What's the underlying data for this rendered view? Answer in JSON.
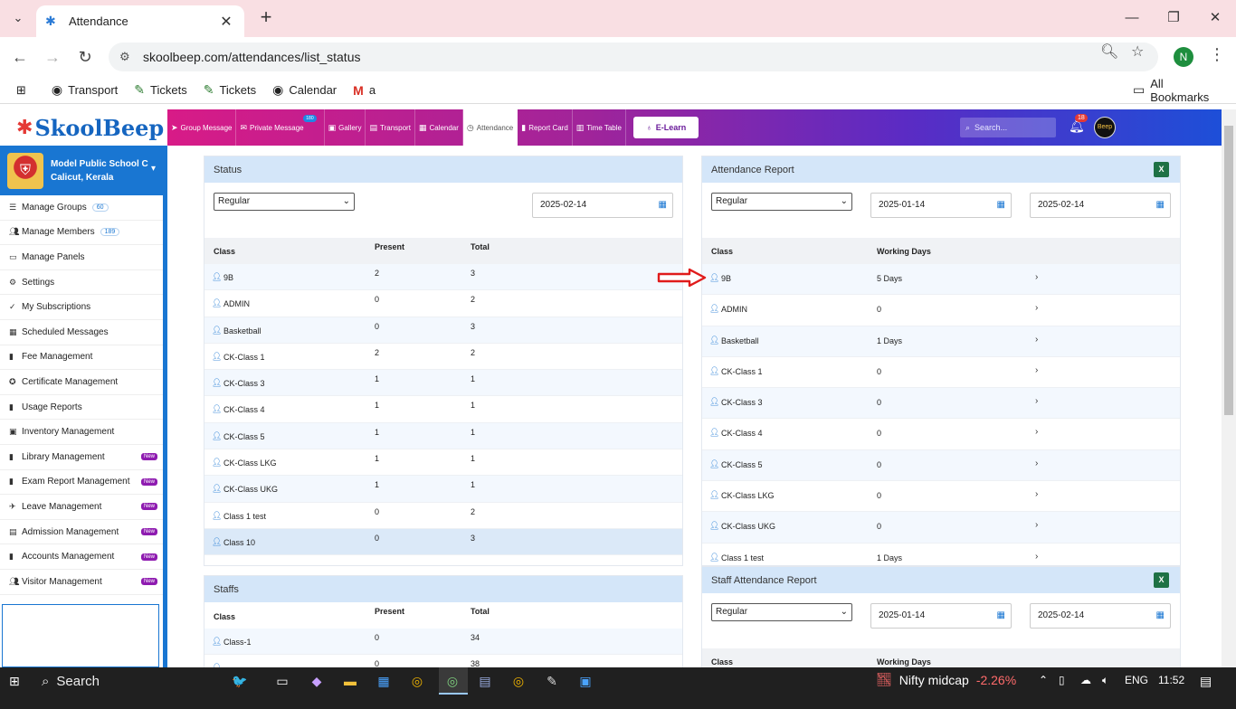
{
  "browser": {
    "tab_title": "Attendance",
    "url": "skoolbeep.com/attendances/list_status",
    "profile_initial": "N",
    "bookmarks": [
      {
        "label": "Transport",
        "icon": "globe-icon"
      },
      {
        "label": "Tickets",
        "icon": "ticket-icon"
      },
      {
        "label": "Tickets",
        "icon": "ticket-icon"
      },
      {
        "label": "Calendar",
        "icon": "globe-icon"
      },
      {
        "label": "a",
        "icon": "gmail-icon"
      }
    ],
    "all_bookmarks": "All Bookmarks"
  },
  "brand": {
    "name": "SkoolBeep"
  },
  "topnav": {
    "items": [
      {
        "label": "Group Message",
        "icon": "send-icon"
      },
      {
        "label": "Private Message",
        "icon": "mail-icon",
        "badge": "180"
      },
      {
        "label": "Gallery",
        "icon": "image-icon"
      },
      {
        "label": "Transport",
        "icon": "bus-icon"
      },
      {
        "label": "Calendar",
        "icon": "calendar-icon"
      },
      {
        "label": "Attendance",
        "icon": "clock-icon",
        "active": true
      },
      {
        "label": "Report Card",
        "icon": "book-icon"
      },
      {
        "label": "Time Table",
        "icon": "timetable-icon"
      }
    ],
    "elearn": "E-Learn",
    "search_placeholder": "Search...",
    "notif_count": "18",
    "avatar_text": "Beep"
  },
  "school": {
    "name": "Model Public School C",
    "location": "Calicut, Kerala"
  },
  "sidebar": {
    "items": [
      {
        "label": "Manage Groups",
        "count": "60",
        "icon": "list-icon"
      },
      {
        "label": "Manage Members",
        "count": "189",
        "icon": "users-icon"
      },
      {
        "label": "Manage Panels",
        "icon": "monitor-icon"
      },
      {
        "label": "Settings",
        "icon": "gear-icon"
      },
      {
        "label": "My Subscriptions",
        "icon": "check-icon"
      },
      {
        "label": "Scheduled Messages",
        "icon": "calendar-icon"
      },
      {
        "label": "Fee Management",
        "icon": "file-icon"
      },
      {
        "label": "Certificate Management",
        "icon": "award-icon"
      },
      {
        "label": "Usage Reports",
        "icon": "bar-chart-icon"
      },
      {
        "label": "Inventory Management",
        "icon": "box-icon"
      },
      {
        "label": "Library Management",
        "icon": "file-icon",
        "new": "New"
      },
      {
        "label": "Exam Report Management",
        "icon": "file-icon",
        "new": "New"
      },
      {
        "label": "Leave Management",
        "icon": "walk-icon",
        "new": "New"
      },
      {
        "label": "Admission Management",
        "icon": "id-card-icon",
        "new": "New"
      },
      {
        "label": "Accounts Management",
        "icon": "file-icon",
        "new": "New"
      },
      {
        "label": "Visitor Management",
        "icon": "users-icon",
        "new": "New"
      }
    ]
  },
  "status_panel": {
    "title": "Status",
    "select": "Regular",
    "date": "2025-02-14",
    "headers": {
      "class": "Class",
      "present": "Present",
      "total": "Total"
    },
    "rows": [
      {
        "class": "9B",
        "present": "2",
        "total": "3"
      },
      {
        "class": "ADMIN",
        "present": "0",
        "total": "2"
      },
      {
        "class": "Basketball",
        "present": "0",
        "total": "3"
      },
      {
        "class": "CK-Class 1",
        "present": "2",
        "total": "2"
      },
      {
        "class": "CK-Class 3",
        "present": "1",
        "total": "1"
      },
      {
        "class": "CK-Class 4",
        "present": "1",
        "total": "1"
      },
      {
        "class": "CK-Class 5",
        "present": "1",
        "total": "1"
      },
      {
        "class": "CK-Class LKG",
        "present": "1",
        "total": "1"
      },
      {
        "class": "CK-Class UKG",
        "present": "1",
        "total": "1"
      },
      {
        "class": "Class 1 test",
        "present": "0",
        "total": "2"
      },
      {
        "class": "Class 10",
        "present": "0",
        "total": "3"
      }
    ]
  },
  "staffs_panel": {
    "title": "Staffs",
    "headers": {
      "class": "Class",
      "present": "Present",
      "total": "Total"
    },
    "rows": [
      {
        "class": "Class-1",
        "present": "0",
        "total": "34"
      },
      {
        "class": "",
        "present": "0",
        "total": "38"
      }
    ]
  },
  "attendance_report": {
    "title": "Attendance Report",
    "select": "Regular",
    "date_from": "2025-01-14",
    "date_to": "2025-02-14",
    "headers": {
      "class": "Class",
      "working_days": "Working Days"
    },
    "rows": [
      {
        "class": "9B",
        "days": "5 Days"
      },
      {
        "class": "ADMIN",
        "days": "0"
      },
      {
        "class": "Basketball",
        "days": "1 Days"
      },
      {
        "class": "CK-Class 1",
        "days": "0"
      },
      {
        "class": "CK-Class 3",
        "days": "0"
      },
      {
        "class": "CK-Class 4",
        "days": "0"
      },
      {
        "class": "CK-Class 5",
        "days": "0"
      },
      {
        "class": "CK-Class LKG",
        "days": "0"
      },
      {
        "class": "CK-Class UKG",
        "days": "0"
      },
      {
        "class": "Class 1 test",
        "days": "1 Days"
      }
    ]
  },
  "staff_report": {
    "title": "Staff Attendance Report",
    "select": "Regular",
    "date_from": "2025-01-14",
    "date_to": "2025-02-14",
    "headers": {
      "class": "Class",
      "working_days": "Working Days"
    }
  },
  "taskbar": {
    "search": "Search",
    "ticker_name": "Nifty midcap",
    "ticker_value": "-2.26%",
    "lang": "ENG",
    "time": "11:52"
  }
}
